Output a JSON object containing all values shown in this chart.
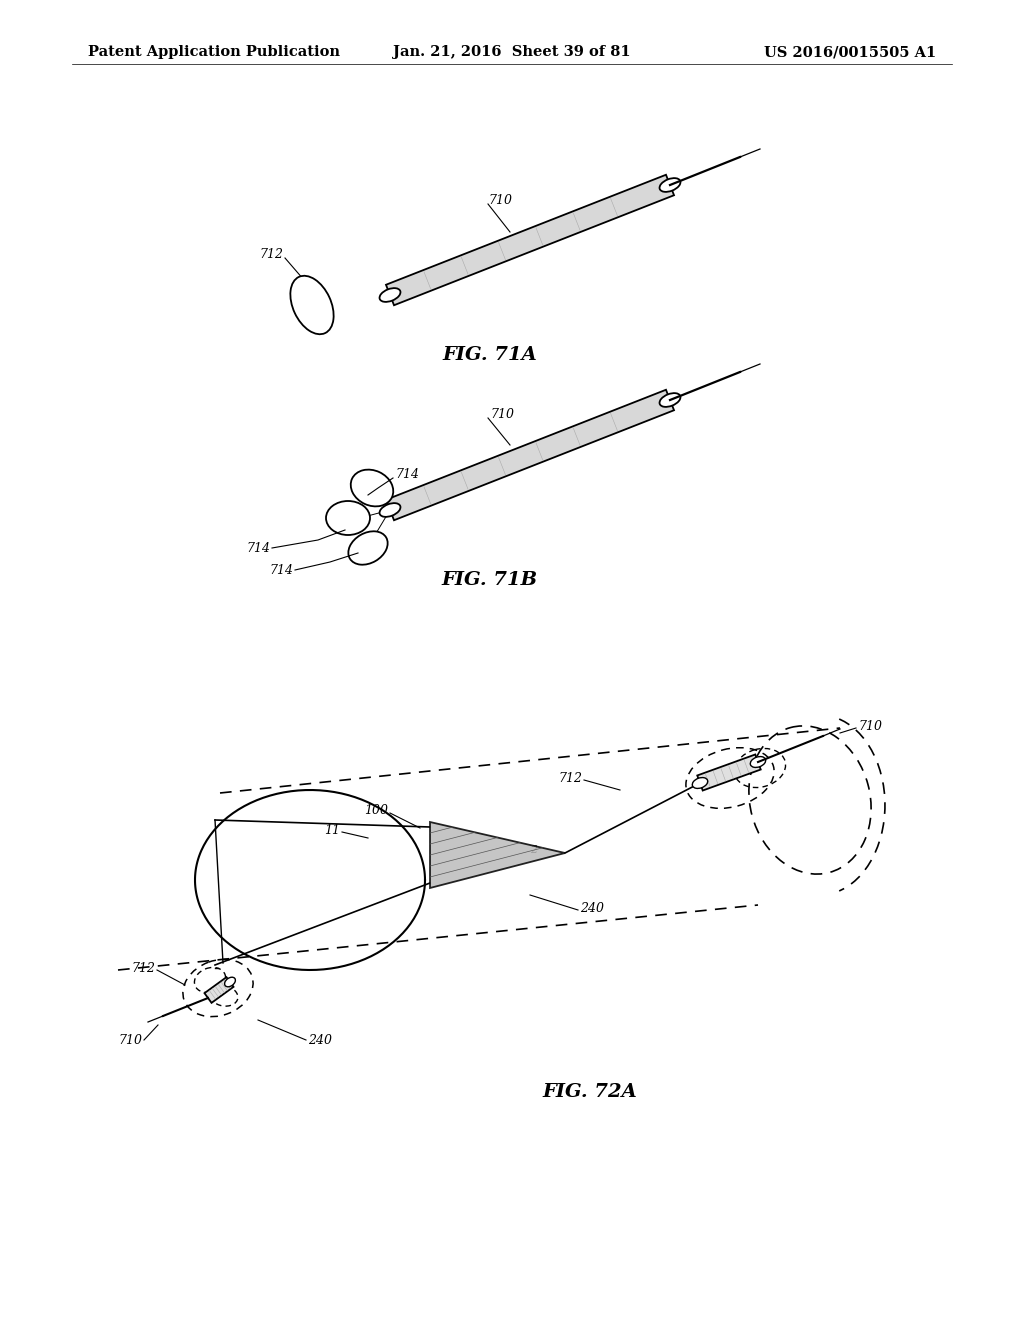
{
  "background_color": "#ffffff",
  "header_left": "Patent Application Publication",
  "header_center": "Jan. 21, 2016  Sheet 39 of 81",
  "header_right": "US 2016/0015505 A1",
  "fig71a_label": "FIG. 71A",
  "fig71b_label": "FIG. 71B",
  "fig72a_label": "FIG. 72A",
  "label_fontsize": 14,
  "annotation_fontsize": 9,
  "header_fontsize": 10.5
}
